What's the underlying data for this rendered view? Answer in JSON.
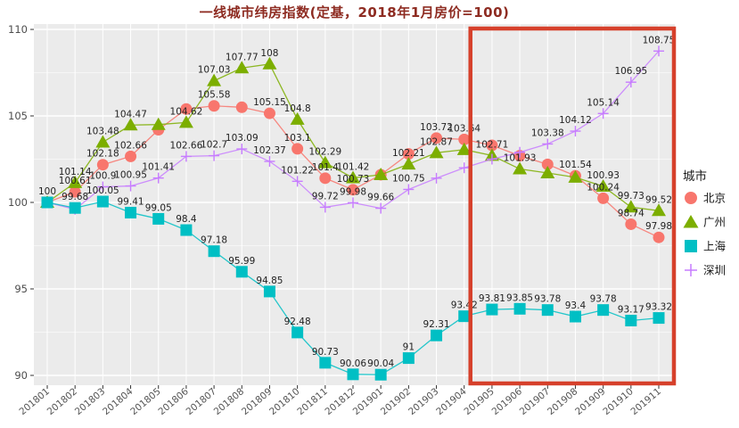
{
  "title": "一线城市纬房指数(定基，2018年1月房价=100)",
  "legend": {
    "title": "城市",
    "entries": [
      {
        "label": "北京",
        "marker": "circle",
        "color": "#F8766D"
      },
      {
        "label": "广州",
        "marker": "triangle",
        "color": "#7CAE00"
      },
      {
        "label": "上海",
        "marker": "square",
        "color": "#00BFC4"
      },
      {
        "label": "深圳",
        "marker": "plus",
        "color": "#C77CFF"
      }
    ]
  },
  "chart_data": {
    "type": "line",
    "title": "一线城市纬房指数(定基，2018年1月房价=100)",
    "xlabel": "",
    "ylabel": "",
    "ylim": [
      88.5,
      110.5
    ],
    "yticks": [
      90,
      95,
      100,
      105,
      110
    ],
    "grid": true,
    "legend_position": "right",
    "panel_color": "#EBEBEB",
    "grid_color": "#FFFFFF",
    "highlight_box": {
      "from": "201904",
      "to": "201911",
      "color": "#D6402B"
    },
    "categories": [
      "201801",
      "201802",
      "201803",
      "201804",
      "201805",
      "201806",
      "201807",
      "201808",
      "201809",
      "201810",
      "201811",
      "201812",
      "201901",
      "201902",
      "201903",
      "201904",
      "201905",
      "201906",
      "201907",
      "201908",
      "201909",
      "201910",
      "201911"
    ],
    "series": [
      {
        "name": "北京",
        "marker": "circle",
        "color": "#F8766D",
        "values": [
          100,
          100.61,
          102.18,
          102.66,
          104.2,
          105.4,
          105.58,
          105.5,
          105.15,
          103.1,
          101.4,
          100.73,
          101.6,
          102.8,
          103.72,
          103.64,
          103.3,
          102.7,
          102.2,
          101.54,
          100.24,
          98.74,
          97.98
        ],
        "labels": [
          "",
          "100.61",
          "102.18",
          "102.66",
          "",
          "",
          "105.58",
          "",
          "105.15",
          "103.1",
          "101.4",
          "100.73",
          "",
          "",
          "103.72",
          "103.64",
          "",
          "",
          "",
          "101.54",
          "100.24",
          "98.74",
          "97.98"
        ]
      },
      {
        "name": "广州",
        "marker": "triangle",
        "color": "#7CAE00",
        "values": [
          100,
          101.14,
          103.48,
          104.47,
          104.5,
          104.62,
          107.03,
          107.77,
          108,
          104.8,
          102.29,
          101.42,
          101.6,
          102.21,
          102.87,
          103.05,
          102.71,
          101.93,
          101.7,
          101.45,
          100.93,
          99.73,
          99.52
        ],
        "labels": [
          "",
          "101.14",
          "103.48",
          "104.47",
          "",
          "104.62",
          "107.03",
          "107.77",
          "108",
          "104.8",
          "102.29",
          "101.42",
          "",
          "102.21",
          "102.87",
          "",
          "102.71",
          "101.93",
          "",
          "",
          "100.93",
          "99.73",
          "99.52"
        ]
      },
      {
        "name": "上海",
        "marker": "square",
        "color": "#00BFC4",
        "values": [
          100,
          99.68,
          100.05,
          99.41,
          99.05,
          98.4,
          97.18,
          95.99,
          94.85,
          92.48,
          90.73,
          90.06,
          90.04,
          91,
          92.31,
          93.42,
          93.81,
          93.85,
          93.78,
          93.4,
          93.78,
          93.17,
          93.32
        ],
        "labels": [
          "100",
          "99.68",
          "100.05",
          "99.41",
          "99.05",
          "98.4",
          "97.18",
          "95.99",
          "94.85",
          "92.48",
          "90.73",
          "90.06",
          "90.04",
          "91",
          "92.31",
          "93.42",
          "93.81",
          "93.85",
          "93.78",
          "93.4",
          "93.78",
          "93.17",
          "93.32"
        ]
      },
      {
        "name": "深圳",
        "marker": "plus",
        "color": "#C77CFF",
        "values": [
          100,
          99.6,
          100.9,
          100.95,
          101.41,
          102.66,
          102.7,
          103.09,
          102.37,
          101.22,
          99.72,
          99.98,
          99.66,
          100.75,
          101.4,
          102.0,
          102.5,
          102.9,
          103.38,
          104.12,
          105.14,
          106.95,
          108.75
        ],
        "labels": [
          "",
          "",
          "100.9",
          "100.95",
          "101.41",
          "102.66",
          "102.7",
          "103.09",
          "102.37",
          "101.22",
          "99.72",
          "99.98",
          "99.66",
          "100.75",
          "",
          "",
          "",
          "",
          "103.38",
          "104.12",
          "105.14",
          "106.95",
          "108.75"
        ]
      }
    ]
  }
}
